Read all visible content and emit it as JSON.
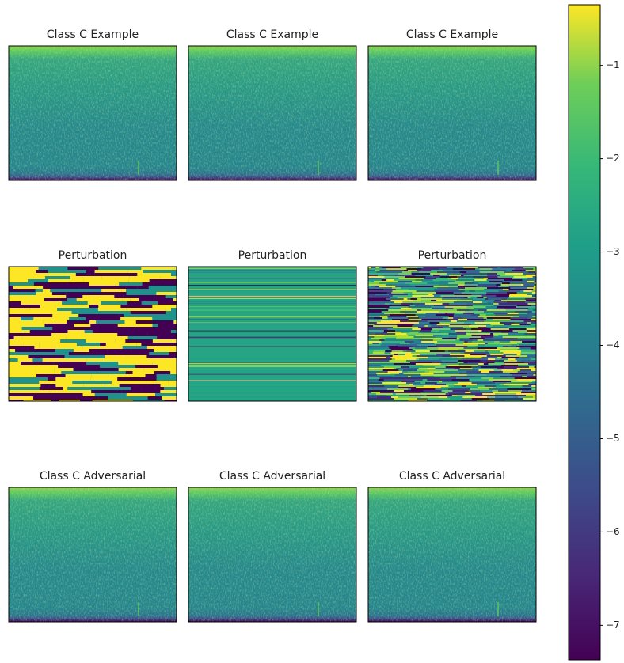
{
  "chart_data": {
    "type": "image-grid",
    "panels": [
      {
        "title": "Class C Example"
      },
      {
        "title": "Class C Example"
      },
      {
        "title": "Class C Example"
      },
      {
        "title": "Perturbation"
      },
      {
        "title": "Perturbation"
      },
      {
        "title": "Perturbation"
      },
      {
        "title": "Class C Adversarial"
      },
      {
        "title": "Class C Adversarial"
      },
      {
        "title": "Class C Adversarial"
      }
    ],
    "colorbar": {
      "ylim": [
        -7.37,
        -0.35
      ],
      "yticks": [
        {
          "value": -7,
          "label": "−7"
        },
        {
          "value": -6,
          "label": "−6"
        },
        {
          "value": -5,
          "label": "−5"
        },
        {
          "value": -4,
          "label": "−4"
        },
        {
          "value": -3,
          "label": "−3"
        },
        {
          "value": -2,
          "label": "−2"
        },
        {
          "value": -1,
          "label": "−1"
        }
      ]
    }
  }
}
